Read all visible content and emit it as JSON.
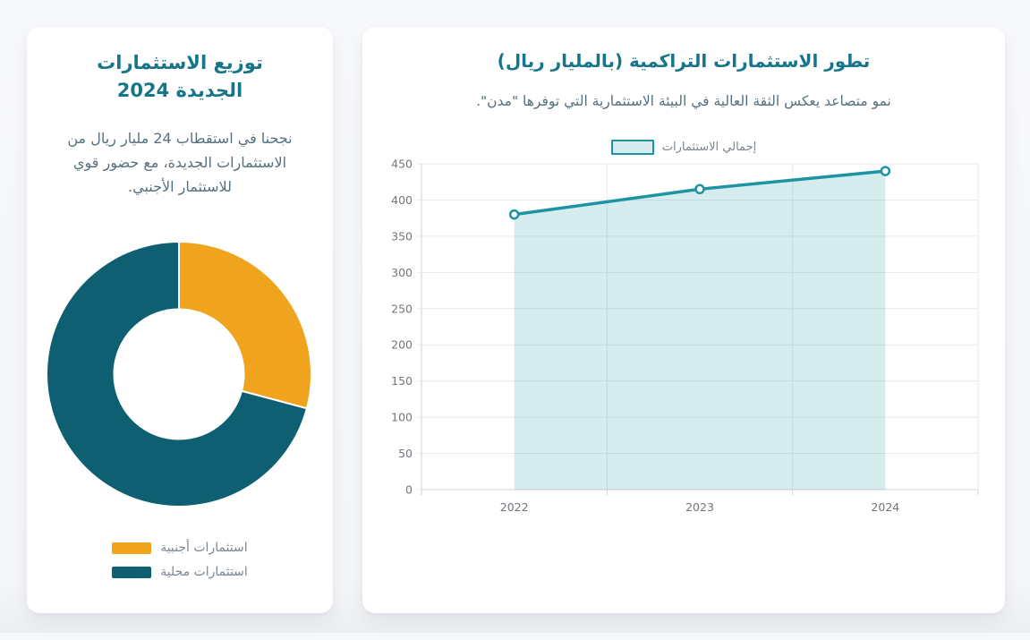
{
  "page": {
    "background": "#f6f8fb"
  },
  "donut_card": {
    "title": "توزيع الاستثمارات الجديدة 2024",
    "description": "نجحنا في استقطاب 24 مليار ريال من الاستثمارات الجديدة، مع حضور قوي للاستثمار الأجنبي.",
    "legend": [
      {
        "label": "استثمارات أجنبية",
        "color": "#f0a31c"
      },
      {
        "label": "استثمارات محلية",
        "color": "#0e5f72"
      }
    ]
  },
  "line_card": {
    "title": "تطور الاستثمارات التراكمية (بالمليار ريال)",
    "subtitle": "نمو متصاعد يعكس الثقة العالية في البيئة الاستثمارية التي توفرها \"مدن\".",
    "legend_label": "إجمالي الاستثمارات"
  },
  "chart_data": [
    {
      "type": "pie",
      "subtype": "donut",
      "title": "توزيع الاستثمارات الجديدة 2024",
      "labels": [
        "استثمارات أجنبية",
        "استثمارات محلية"
      ],
      "values": [
        7,
        17
      ],
      "percentages": [
        29.2,
        70.8
      ],
      "unit": "مليار ريال",
      "colors": [
        "#f0a31c",
        "#0e5f72"
      ],
      "start_angle_deg": 0,
      "direction": "clockwise",
      "cutout_ratio": 0.49,
      "legend_position": "bottom"
    },
    {
      "type": "area",
      "title": "تطور الاستثمارات التراكمية (بالمليار ريال)",
      "categories": [
        "2022",
        "2023",
        "2024"
      ],
      "series": [
        {
          "name": "إجمالي الاستثمارات",
          "values": [
            380,
            415,
            440
          ]
        }
      ],
      "xlabel": "",
      "ylabel": "",
      "ylim": [
        0,
        450
      ],
      "ytick_step": 50,
      "grid": true,
      "legend_position": "top",
      "line_color": "#1c94a1",
      "fill_color": "rgba(28,148,161,0.18)",
      "marker_fill": "#ffffff",
      "tick_color": "#71767d",
      "grid_color": "#e8eaee",
      "axis_color": "#ccd2d9"
    }
  ]
}
